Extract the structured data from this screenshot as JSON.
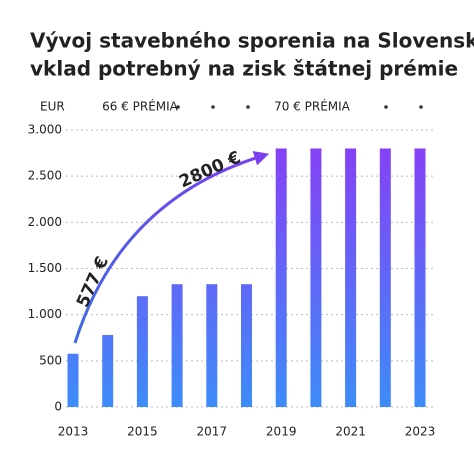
{
  "chart_data": {
    "type": "bar",
    "title": [
      "Vývoj stavebného sporenia na Slovensku:",
      "vklad potrebný na zisk štátnej prémie"
    ],
    "y_unit": "EUR",
    "period_labels": [
      "66 € PRÉMIA",
      "70 € PRÉMIA"
    ],
    "categories": [
      "2013",
      null,
      "2015",
      null,
      "2017",
      null,
      "2019",
      null,
      "2021",
      null,
      "2023"
    ],
    "values": [
      577,
      780,
      1200,
      1330,
      1330,
      1330,
      2800,
      2800,
      2800,
      2800,
      2800
    ],
    "colors": [
      "#8a3cf6",
      "#3d8cf8"
    ],
    "ylim": [
      0,
      3000
    ],
    "yticks": [
      0,
      500,
      {
        "value": 1000,
        "label": "1.000"
      },
      {
        "value": 1500,
        "label": "1.500"
      },
      {
        "value": 2000,
        "label": "2.000"
      },
      {
        "value": 2500,
        "label": "2.500"
      },
      {
        "value": 3000,
        "label": "3.000"
      }
    ],
    "grid": true,
    "annotations": [
      {
        "text": "577 €",
        "color": "#3f6be4"
      },
      {
        "text": "2800 €",
        "color": "#6b3ee9"
      }
    ]
  }
}
